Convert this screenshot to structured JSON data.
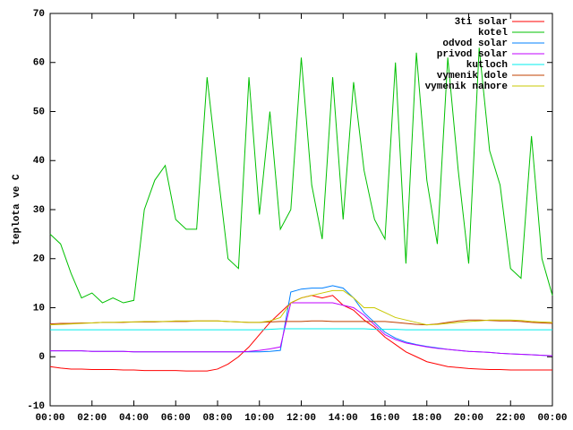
{
  "chart_data": {
    "type": "line",
    "ylabel": "teplota ve C",
    "x": [
      0,
      0.5,
      1,
      1.5,
      2,
      2.5,
      3,
      3.5,
      4,
      4.5,
      5,
      5.5,
      6,
      6.5,
      7,
      7.5,
      8,
      8.5,
      9,
      9.5,
      10,
      10.5,
      11,
      11.5,
      12,
      12.5,
      13,
      13.5,
      14,
      14.5,
      15,
      15.5,
      16,
      16.5,
      17,
      17.5,
      18,
      18.5,
      19,
      19.5,
      20,
      20.5,
      21,
      21.5,
      22,
      22.5,
      23,
      23.5,
      24
    ],
    "xlim": [
      0,
      24
    ],
    "xticks": [
      {
        "value": 0,
        "label": "00:00"
      },
      {
        "value": 2,
        "label": "02:00"
      },
      {
        "value": 4,
        "label": "04:00"
      },
      {
        "value": 6,
        "label": "06:00"
      },
      {
        "value": 8,
        "label": "08:00"
      },
      {
        "value": 10,
        "label": "10:00"
      },
      {
        "value": 12,
        "label": "12:00"
      },
      {
        "value": 14,
        "label": "14:00"
      },
      {
        "value": 16,
        "label": "16:00"
      },
      {
        "value": 18,
        "label": "18:00"
      },
      {
        "value": 20,
        "label": "20:00"
      },
      {
        "value": 22,
        "label": "22:00"
      },
      {
        "value": 24,
        "label": "00:00"
      }
    ],
    "ylim": [
      -10,
      70
    ],
    "yticks": [
      -10,
      0,
      10,
      20,
      30,
      40,
      50,
      60,
      70
    ],
    "legend": "top-right",
    "series": [
      {
        "name": "3ti solar",
        "color": "#ff0000",
        "values": [
          -2,
          -2.3,
          -2.5,
          -2.5,
          -2.6,
          -2.6,
          -2.6,
          -2.7,
          -2.7,
          -2.8,
          -2.8,
          -2.8,
          -2.8,
          -2.9,
          -2.9,
          -2.9,
          -2.5,
          -1.5,
          0,
          2,
          4.5,
          7,
          9,
          11,
          12,
          12.5,
          12,
          12.5,
          10.5,
          9.5,
          7.5,
          6,
          4,
          2.5,
          1,
          0,
          -1,
          -1.5,
          -2,
          -2.2,
          -2.4,
          -2.5,
          -2.6,
          -2.6,
          -2.7,
          -2.7,
          -2.7,
          -2.7,
          -2.7
        ]
      },
      {
        "name": "kotel",
        "color": "#00c000",
        "values": [
          25,
          23,
          17,
          12,
          13,
          11,
          12,
          11,
          11.5,
          30,
          36,
          39,
          28,
          26,
          26,
          57,
          38,
          20,
          18,
          57,
          29,
          50,
          26,
          30,
          61,
          35,
          24,
          57,
          28,
          56,
          38,
          28,
          24,
          60,
          19,
          62,
          36,
          23,
          61,
          38,
          19,
          63,
          42,
          35,
          18,
          16,
          45,
          20,
          12.5
        ]
      },
      {
        "name": "odvod solar",
        "color": "#0080ff",
        "values": [
          1.2,
          1.2,
          1.2,
          1.2,
          1.1,
          1.1,
          1.1,
          1.1,
          1,
          1,
          1,
          1,
          1,
          1,
          1,
          1,
          1,
          1,
          1,
          1,
          1,
          1.1,
          1.3,
          13.2,
          13.8,
          14,
          14,
          14.5,
          14,
          12,
          9,
          7,
          5,
          3.8,
          3,
          2.5,
          2.1,
          1.8,
          1.5,
          1.3,
          1.1,
          1,
          0.9,
          0.7,
          0.6,
          0.5,
          0.4,
          0.3,
          0.2
        ]
      },
      {
        "name": "privod solar",
        "color": "#c000ff",
        "values": [
          1.2,
          1.2,
          1.2,
          1.2,
          1.1,
          1.1,
          1.1,
          1.1,
          1,
          1,
          1,
          1,
          1,
          1,
          1,
          1,
          1,
          1,
          1,
          1.1,
          1.3,
          1.6,
          2,
          11,
          11,
          11,
          11,
          11,
          10.5,
          10,
          8.5,
          6.5,
          4.5,
          3.5,
          2.8,
          2.4,
          2,
          1.7,
          1.5,
          1.3,
          1.1,
          1,
          0.9,
          0.7,
          0.6,
          0.5,
          0.4,
          0.3,
          0.2
        ]
      },
      {
        "name": "kutloch",
        "color": "#00eeee",
        "values": [
          5.5,
          5.5,
          5.5,
          5.5,
          5.5,
          5.5,
          5.5,
          5.5,
          5.5,
          5.5,
          5.5,
          5.5,
          5.5,
          5.5,
          5.5,
          5.5,
          5.5,
          5.5,
          5.5,
          5.5,
          5.5,
          5.6,
          5.7,
          5.7,
          5.7,
          5.7,
          5.7,
          5.7,
          5.7,
          5.7,
          5.7,
          5.6,
          5.6,
          5.6,
          5.5,
          5.5,
          5.5,
          5.5,
          5.5,
          5.5,
          5.5,
          5.5,
          5.5,
          5.5,
          5.5,
          5.5,
          5.5,
          5.5,
          5.5
        ]
      },
      {
        "name": "vymenik dole",
        "color": "#c04000",
        "values": [
          6.7,
          6.8,
          6.8,
          6.9,
          6.9,
          7,
          7,
          7,
          7.1,
          7.1,
          7.1,
          7.2,
          7.2,
          7.2,
          7.3,
          7.3,
          7.3,
          7.2,
          7.1,
          7,
          7,
          7.1,
          7.2,
          7.2,
          7.2,
          7.3,
          7.3,
          7.2,
          7.2,
          7.2,
          7.2,
          7.2,
          7.2,
          7,
          6.8,
          6.6,
          6.5,
          6.7,
          7,
          7.3,
          7.5,
          7.5,
          7.4,
          7.3,
          7.3,
          7.2,
          7,
          6.9,
          6.8
        ]
      },
      {
        "name": "vymenik nahore",
        "color": "#c8c800",
        "values": [
          6.5,
          6.6,
          6.7,
          6.8,
          6.9,
          7,
          7,
          7.1,
          7.1,
          7.2,
          7.2,
          7.2,
          7.3,
          7.3,
          7.3,
          7.3,
          7.3,
          7.2,
          7.1,
          7,
          7,
          7.3,
          8,
          11,
          12,
          12.5,
          13,
          13.5,
          13.5,
          12,
          10,
          10,
          9,
          8,
          7.5,
          7,
          6.5,
          6.6,
          6.8,
          7,
          7.2,
          7.3,
          7.5,
          7.5,
          7.5,
          7.4,
          7.2,
          7.1,
          7
        ]
      }
    ]
  }
}
